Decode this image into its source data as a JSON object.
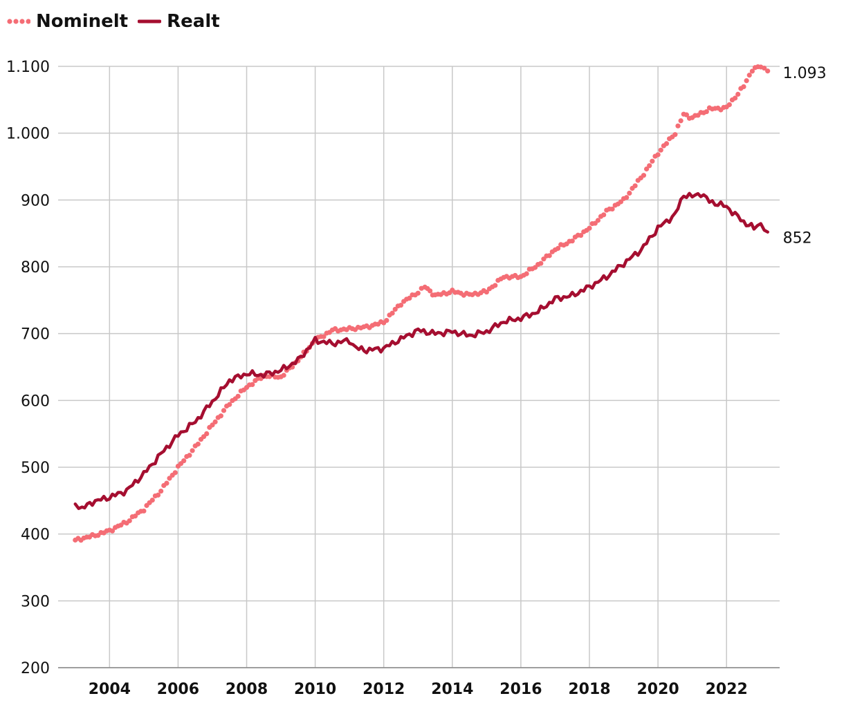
{
  "chart_data": {
    "type": "line",
    "legend_position": "top-left",
    "grid": true,
    "ylim": [
      200,
      1100
    ],
    "y_ticks": [
      200,
      300,
      400,
      500,
      600,
      700,
      800,
      900,
      1000,
      1100
    ],
    "y_tick_labels": [
      "200",
      "300",
      "400",
      "500",
      "600",
      "700",
      "800",
      "900",
      "1.000",
      "1.100"
    ],
    "x_ticks": [
      2004,
      2006,
      2008,
      2010,
      2012,
      2014,
      2016,
      2018,
      2020,
      2022
    ],
    "x_tick_labels": [
      "2004",
      "2006",
      "2008",
      "2010",
      "2012",
      "2014",
      "2016",
      "2018",
      "2020",
      "2022"
    ],
    "xlim": [
      2002.5,
      2023.55
    ],
    "series": [
      {
        "name": "Nominelt",
        "color": "#f46d75",
        "style": "dotted",
        "end_label": "1.093",
        "points": [
          [
            2003.0,
            391
          ],
          [
            2003.5,
            397
          ],
          [
            2004.0,
            405
          ],
          [
            2004.5,
            418
          ],
          [
            2005.0,
            437
          ],
          [
            2005.5,
            465
          ],
          [
            2006.0,
            500
          ],
          [
            2006.5,
            530
          ],
          [
            2007.0,
            563
          ],
          [
            2007.5,
            595
          ],
          [
            2008.0,
            620
          ],
          [
            2008.5,
            637
          ],
          [
            2009.0,
            635
          ],
          [
            2009.5,
            660
          ],
          [
            2010.0,
            690
          ],
          [
            2010.5,
            705
          ],
          [
            2011.0,
            707
          ],
          [
            2011.5,
            710
          ],
          [
            2012.0,
            717
          ],
          [
            2012.5,
            745
          ],
          [
            2013.0,
            762
          ],
          [
            2013.2,
            770
          ],
          [
            2013.5,
            757
          ],
          [
            2014.0,
            763
          ],
          [
            2014.5,
            758
          ],
          [
            2015.0,
            763
          ],
          [
            2015.5,
            785
          ],
          [
            2016.0,
            785
          ],
          [
            2016.5,
            803
          ],
          [
            2017.0,
            826
          ],
          [
            2017.5,
            840
          ],
          [
            2018.0,
            858
          ],
          [
            2018.5,
            883
          ],
          [
            2019.0,
            900
          ],
          [
            2019.5,
            933
          ],
          [
            2020.0,
            970
          ],
          [
            2020.5,
            1000
          ],
          [
            2020.75,
            1028
          ],
          [
            2021.0,
            1023
          ],
          [
            2021.5,
            1036
          ],
          [
            2022.0,
            1038
          ],
          [
            2022.5,
            1070
          ],
          [
            2022.75,
            1095
          ],
          [
            2023.0,
            1100
          ],
          [
            2023.2,
            1093
          ]
        ]
      },
      {
        "name": "Realt",
        "color": "#a50e30",
        "style": "solid",
        "end_label": "852",
        "points": [
          [
            2003.0,
            445
          ],
          [
            2003.2,
            438
          ],
          [
            2003.5,
            448
          ],
          [
            2004.0,
            455
          ],
          [
            2004.5,
            465
          ],
          [
            2005.0,
            490
          ],
          [
            2005.5,
            520
          ],
          [
            2006.0,
            548
          ],
          [
            2006.5,
            568
          ],
          [
            2007.0,
            598
          ],
          [
            2007.5,
            630
          ],
          [
            2008.0,
            640
          ],
          [
            2008.5,
            638
          ],
          [
            2009.0,
            645
          ],
          [
            2009.5,
            660
          ],
          [
            2010.0,
            690
          ],
          [
            2010.5,
            685
          ],
          [
            2011.0,
            690
          ],
          [
            2011.2,
            678
          ],
          [
            2011.5,
            675
          ],
          [
            2012.0,
            678
          ],
          [
            2012.5,
            692
          ],
          [
            2013.0,
            705
          ],
          [
            2013.5,
            700
          ],
          [
            2014.0,
            703
          ],
          [
            2014.5,
            697
          ],
          [
            2015.0,
            703
          ],
          [
            2015.5,
            718
          ],
          [
            2016.0,
            723
          ],
          [
            2016.5,
            733
          ],
          [
            2017.0,
            752
          ],
          [
            2017.5,
            757
          ],
          [
            2018.0,
            770
          ],
          [
            2018.5,
            785
          ],
          [
            2019.0,
            805
          ],
          [
            2019.5,
            825
          ],
          [
            2020.0,
            858
          ],
          [
            2020.5,
            878
          ],
          [
            2020.75,
            908
          ],
          [
            2021.0,
            905
          ],
          [
            2021.25,
            910
          ],
          [
            2021.5,
            898
          ],
          [
            2022.0,
            890
          ],
          [
            2022.5,
            867
          ],
          [
            2022.8,
            858
          ],
          [
            2023.0,
            865
          ],
          [
            2023.2,
            852
          ]
        ]
      }
    ]
  }
}
